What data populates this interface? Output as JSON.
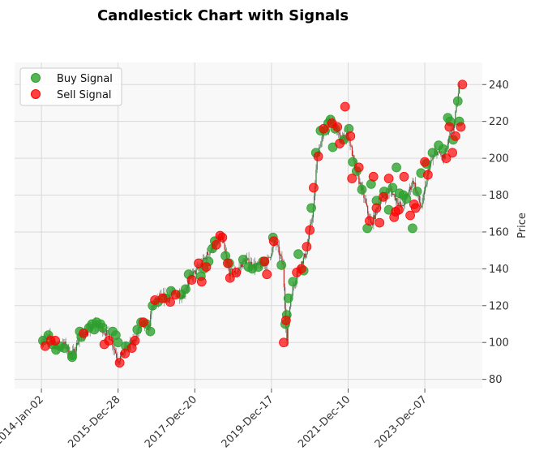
{
  "chart_data": {
    "type": "candlestick",
    "title": "Candlestick Chart with Signals",
    "ylabel": "Price",
    "xlabel": "",
    "ylim": [
      75,
      252
    ],
    "xlim": [
      -0.35,
      5.75
    ],
    "yticks": [
      80,
      100,
      120,
      140,
      160,
      180,
      200,
      220,
      240
    ],
    "xtick_labels": [
      "2014-Jan-02",
      "2015-Dec-28",
      "2017-Dec-20",
      "2019-Dec-17",
      "2021-Dec-10",
      "2023-Dec-07"
    ],
    "xtick_positions": [
      0,
      1,
      2,
      3,
      4,
      5
    ],
    "grid": true,
    "legend_position": "upper-left",
    "price_path": [
      [
        0.0,
        101
      ],
      [
        0.1,
        103
      ],
      [
        0.2,
        97
      ],
      [
        0.3,
        99
      ],
      [
        0.4,
        93
      ],
      [
        0.5,
        103
      ],
      [
        0.6,
        106
      ],
      [
        0.7,
        110
      ],
      [
        0.8,
        107
      ],
      [
        0.9,
        103
      ],
      [
        1.0,
        90
      ],
      [
        1.1,
        97
      ],
      [
        1.2,
        100
      ],
      [
        1.3,
        110
      ],
      [
        1.4,
        108
      ],
      [
        1.45,
        120
      ],
      [
        1.55,
        124
      ],
      [
        1.7,
        126
      ],
      [
        1.85,
        126
      ],
      [
        1.95,
        136
      ],
      [
        2.05,
        140
      ],
      [
        2.15,
        147
      ],
      [
        2.25,
        153
      ],
      [
        2.35,
        157
      ],
      [
        2.45,
        138
      ],
      [
        2.55,
        138
      ],
      [
        2.65,
        145
      ],
      [
        2.8,
        141
      ],
      [
        2.95,
        144
      ],
      [
        3.05,
        155
      ],
      [
        3.15,
        142
      ],
      [
        3.2,
        100
      ],
      [
        3.25,
        125
      ],
      [
        3.35,
        140
      ],
      [
        3.45,
        148
      ],
      [
        3.55,
        174
      ],
      [
        3.6,
        203
      ],
      [
        3.7,
        216
      ],
      [
        3.8,
        220
      ],
      [
        3.9,
        210
      ],
      [
        4.0,
        213
      ],
      [
        4.1,
        193
      ],
      [
        4.2,
        180
      ],
      [
        4.3,
        163
      ],
      [
        4.4,
        176
      ],
      [
        4.55,
        183
      ],
      [
        4.7,
        173
      ],
      [
        4.85,
        188
      ],
      [
        4.95,
        173
      ],
      [
        5.0,
        182
      ],
      [
        5.05,
        195
      ],
      [
        5.15,
        204
      ],
      [
        5.25,
        200
      ],
      [
        5.3,
        208
      ],
      [
        5.38,
        218
      ],
      [
        5.45,
        238
      ]
    ],
    "series": [
      {
        "name": "Buy Signal",
        "color": "#2ca02c",
        "points": [
          [
            0.02,
            101
          ],
          [
            0.09,
            104
          ],
          [
            0.14,
            99
          ],
          [
            0.19,
            96
          ],
          [
            0.24,
            98
          ],
          [
            0.3,
            97
          ],
          [
            0.4,
            93
          ],
          [
            0.4,
            92
          ],
          [
            0.5,
            106
          ],
          [
            0.52,
            103
          ],
          [
            0.62,
            108
          ],
          [
            0.66,
            110
          ],
          [
            0.69,
            107
          ],
          [
            0.72,
            111
          ],
          [
            0.77,
            110
          ],
          [
            0.8,
            108
          ],
          [
            0.93,
            106
          ],
          [
            0.97,
            104
          ],
          [
            1.0,
            100
          ],
          [
            1.1,
            98
          ],
          [
            1.25,
            107
          ],
          [
            1.3,
            111
          ],
          [
            1.37,
            110
          ],
          [
            1.42,
            106
          ],
          [
            1.45,
            120
          ],
          [
            1.52,
            122
          ],
          [
            1.62,
            124
          ],
          [
            1.69,
            128
          ],
          [
            1.82,
            126
          ],
          [
            1.88,
            129
          ],
          [
            1.92,
            137
          ],
          [
            2.08,
            136
          ],
          [
            2.12,
            140
          ],
          [
            2.18,
            144
          ],
          [
            2.23,
            151
          ],
          [
            2.26,
            155
          ],
          [
            2.4,
            147
          ],
          [
            2.45,
            143
          ],
          [
            2.63,
            145
          ],
          [
            2.7,
            141
          ],
          [
            2.75,
            140
          ],
          [
            2.83,
            141
          ],
          [
            2.89,
            144
          ],
          [
            3.02,
            157
          ],
          [
            3.13,
            142
          ],
          [
            3.18,
            110
          ],
          [
            3.2,
            115
          ],
          [
            3.22,
            124
          ],
          [
            3.28,
            133
          ],
          [
            3.35,
            148
          ],
          [
            3.42,
            139
          ],
          [
            3.52,
            173
          ],
          [
            3.58,
            203
          ],
          [
            3.64,
            215
          ],
          [
            3.7,
            215
          ],
          [
            3.74,
            219
          ],
          [
            3.77,
            221
          ],
          [
            3.8,
            206
          ],
          [
            3.83,
            216
          ],
          [
            3.94,
            210
          ],
          [
            4.01,
            216
          ],
          [
            4.06,
            198
          ],
          [
            4.11,
            193
          ],
          [
            4.18,
            183
          ],
          [
            4.25,
            162
          ],
          [
            4.3,
            186
          ],
          [
            4.37,
            177
          ],
          [
            4.47,
            182
          ],
          [
            4.53,
            172
          ],
          [
            4.58,
            184
          ],
          [
            4.63,
            195
          ],
          [
            4.67,
            181
          ],
          [
            4.72,
            180
          ],
          [
            4.76,
            178
          ],
          [
            4.84,
            162
          ],
          [
            4.9,
            182
          ],
          [
            4.95,
            192
          ],
          [
            5.02,
            197
          ],
          [
            5.1,
            203
          ],
          [
            5.18,
            207
          ],
          [
            5.24,
            205
          ],
          [
            5.3,
            222
          ],
          [
            5.33,
            220
          ],
          [
            5.37,
            210
          ],
          [
            5.43,
            231
          ],
          [
            5.45,
            220
          ]
        ]
      },
      {
        "name": "Sell Signal",
        "color": "#ff0000",
        "points": [
          [
            0.05,
            98
          ],
          [
            0.12,
            101
          ],
          [
            0.18,
            101
          ],
          [
            0.55,
            105
          ],
          [
            0.82,
            99
          ],
          [
            0.88,
            101
          ],
          [
            1.02,
            89
          ],
          [
            1.09,
            94
          ],
          [
            1.18,
            97
          ],
          [
            1.22,
            101
          ],
          [
            1.33,
            111
          ],
          [
            1.48,
            123
          ],
          [
            1.58,
            124
          ],
          [
            1.68,
            122
          ],
          [
            1.75,
            126
          ],
          [
            1.96,
            134
          ],
          [
            2.05,
            143
          ],
          [
            2.09,
            133
          ],
          [
            2.15,
            141
          ],
          [
            2.28,
            153
          ],
          [
            2.33,
            158
          ],
          [
            2.36,
            157
          ],
          [
            2.43,
            143
          ],
          [
            2.46,
            135
          ],
          [
            2.54,
            138
          ],
          [
            2.91,
            144
          ],
          [
            2.94,
            137
          ],
          [
            3.03,
            155
          ],
          [
            3.16,
            100
          ],
          [
            3.19,
            112
          ],
          [
            3.33,
            138
          ],
          [
            3.39,
            140
          ],
          [
            3.46,
            152
          ],
          [
            3.5,
            161
          ],
          [
            3.55,
            184
          ],
          [
            3.61,
            201
          ],
          [
            3.68,
            216
          ],
          [
            3.79,
            219
          ],
          [
            3.86,
            217
          ],
          [
            3.89,
            208
          ],
          [
            3.96,
            228
          ],
          [
            4.03,
            212
          ],
          [
            4.05,
            189
          ],
          [
            4.14,
            195
          ],
          [
            4.28,
            166
          ],
          [
            4.33,
            190
          ],
          [
            4.37,
            173
          ],
          [
            4.41,
            165
          ],
          [
            4.46,
            179
          ],
          [
            4.53,
            189
          ],
          [
            4.6,
            168
          ],
          [
            4.62,
            171
          ],
          [
            4.66,
            172
          ],
          [
            4.73,
            190
          ],
          [
            4.81,
            169
          ],
          [
            4.86,
            175
          ],
          [
            4.88,
            173
          ],
          [
            5.0,
            198
          ],
          [
            5.04,
            191
          ],
          [
            5.28,
            200
          ],
          [
            5.32,
            217
          ],
          [
            5.36,
            203
          ],
          [
            5.4,
            212
          ],
          [
            5.47,
            217
          ],
          [
            5.49,
            240
          ]
        ]
      }
    ]
  }
}
